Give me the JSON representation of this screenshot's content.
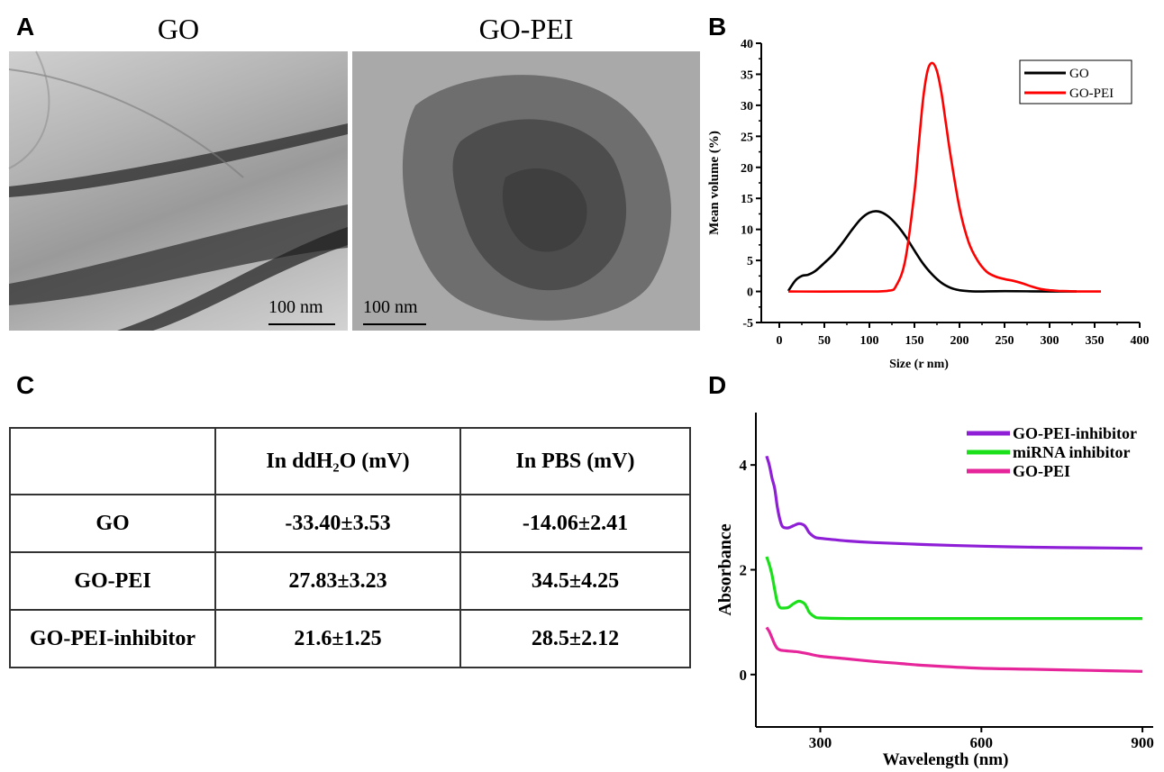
{
  "panels": {
    "a": "A",
    "b": "B",
    "c": "C",
    "d": "D"
  },
  "panel_a": {
    "left_title": "GO",
    "right_title": "GO-PEI",
    "left_scale": "100 nm",
    "right_scale": "100 nm"
  },
  "table": {
    "headers": [
      "",
      "In ddH₂O (mV)",
      "In PBS (mV)"
    ],
    "rows": [
      {
        "label": "GO",
        "ddh2o": "-33.40±3.53",
        "pbs": "-14.06±2.41"
      },
      {
        "label": "GO-PEI",
        "ddh2o": "27.83±3.23",
        "pbs": "34.5±4.25"
      },
      {
        "label": "GO-PEI-inhibitor",
        "ddh2o": "21.6±1.25",
        "pbs": "28.5±2.12"
      }
    ]
  },
  "chart_data": [
    {
      "type": "line",
      "panel": "B",
      "xlabel": "Size (r nm)",
      "ylabel": "Mean volume (%)",
      "xlim": [
        -20,
        400
      ],
      "ylim": [
        -5,
        40
      ],
      "xticks": [
        0,
        50,
        100,
        150,
        200,
        250,
        300,
        350,
        400
      ],
      "yticks": [
        -5,
        0,
        5,
        10,
        15,
        20,
        25,
        30,
        35,
        40
      ],
      "legend_position": "top-right",
      "series": [
        {
          "name": "GO",
          "color": "#000000",
          "x": [
            10,
            18,
            25,
            32,
            40,
            50,
            60,
            70,
            80,
            90,
            100,
            110,
            120,
            130,
            140,
            150,
            160,
            170,
            180,
            190,
            200,
            210,
            220,
            250,
            300,
            330
          ],
          "y": [
            0.1,
            1.8,
            2.5,
            2.7,
            3.3,
            4.6,
            6.0,
            7.8,
            9.8,
            11.6,
            12.7,
            12.9,
            12.2,
            10.8,
            8.9,
            6.6,
            4.4,
            2.7,
            1.4,
            0.6,
            0.2,
            0.05,
            0,
            0.05,
            0,
            0
          ]
        },
        {
          "name": "GO-PEI",
          "color": "#ff0000",
          "x": [
            10,
            80,
            120,
            130,
            140,
            150,
            155,
            160,
            165,
            170,
            175,
            180,
            185,
            190,
            200,
            210,
            220,
            230,
            240,
            250,
            260,
            270,
            280,
            290,
            300,
            310,
            320,
            330,
            357
          ],
          "y": [
            0,
            0,
            0.1,
            1.0,
            5.2,
            16.0,
            24.0,
            31.5,
            35.8,
            36.8,
            35.5,
            32.0,
            27.0,
            22.0,
            13.5,
            8.0,
            5.0,
            3.2,
            2.4,
            2.0,
            1.7,
            1.3,
            0.8,
            0.4,
            0.2,
            0.1,
            0.05,
            0,
            0
          ]
        }
      ]
    },
    {
      "type": "line",
      "panel": "D",
      "xlabel": "Wavelength (nm)",
      "ylabel": "Absorbance",
      "xlim": [
        180,
        920
      ],
      "ylim": [
        -1,
        5
      ],
      "xticks": [
        300,
        600,
        900
      ],
      "yticks": [
        0,
        2,
        4
      ],
      "legend_position": "top-right",
      "series": [
        {
          "name": "GO-PEI-inhibitor",
          "color": "#8f1fd6",
          "x": [
            200,
            205,
            210,
            215,
            220,
            225,
            230,
            240,
            250,
            260,
            270,
            275,
            280,
            290,
            300,
            320,
            350,
            400,
            500,
            600,
            700,
            800,
            900
          ],
          "y": [
            4.17,
            4.0,
            3.75,
            3.55,
            3.2,
            2.95,
            2.82,
            2.8,
            2.84,
            2.88,
            2.85,
            2.78,
            2.7,
            2.62,
            2.6,
            2.58,
            2.55,
            2.52,
            2.48,
            2.45,
            2.43,
            2.42,
            2.41
          ]
        },
        {
          "name": "miRNA inhibitor",
          "color": "#19e019",
          "x": [
            200,
            205,
            210,
            215,
            220,
            225,
            230,
            240,
            250,
            260,
            270,
            275,
            280,
            290,
            300,
            350,
            400,
            500,
            600,
            700,
            800,
            900
          ],
          "y": [
            2.25,
            2.1,
            1.9,
            1.62,
            1.38,
            1.28,
            1.27,
            1.28,
            1.35,
            1.4,
            1.36,
            1.28,
            1.18,
            1.1,
            1.08,
            1.07,
            1.07,
            1.07,
            1.07,
            1.07,
            1.07,
            1.07
          ]
        },
        {
          "name": "GO-PEI",
          "color": "#e6259a",
          "x": [
            200,
            205,
            210,
            215,
            220,
            225,
            230,
            240,
            250,
            260,
            280,
            300,
            350,
            400,
            450,
            500,
            600,
            700,
            800,
            900
          ],
          "y": [
            0.9,
            0.82,
            0.7,
            0.58,
            0.5,
            0.47,
            0.46,
            0.45,
            0.44,
            0.43,
            0.39,
            0.35,
            0.3,
            0.25,
            0.21,
            0.17,
            0.12,
            0.1,
            0.08,
            0.06
          ]
        }
      ]
    }
  ]
}
